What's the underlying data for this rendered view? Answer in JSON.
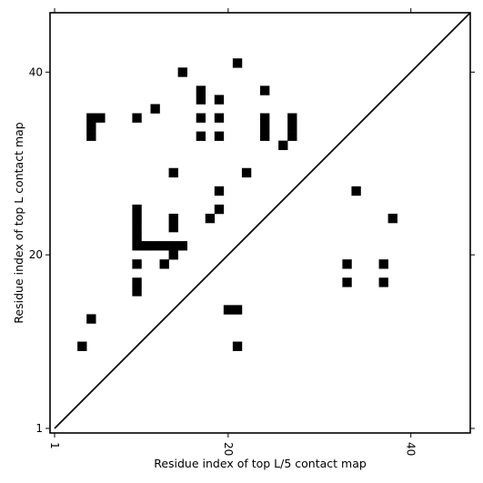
{
  "chart_data": {
    "type": "heatmap",
    "title": "",
    "xlabel": "Residue index of top L/5 contact map",
    "ylabel": "Residue index of top L contact map",
    "xlim": [
      0.5,
      46.5
    ],
    "ylim": [
      0.5,
      46.5
    ],
    "x_ticks": [
      1,
      20,
      40
    ],
    "y_ticks": [
      1,
      20,
      40
    ],
    "x_tick_labels": [
      "1",
      "20",
      "40"
    ],
    "y_tick_labels": [
      "1",
      "20",
      "40"
    ],
    "x_tick_label_rotation": 90,
    "diagonal": {
      "from": [
        1,
        1
      ],
      "to": [
        46.5,
        46.5
      ]
    },
    "cell_color": "#000000",
    "background_color": "#ffffff",
    "contacts": [
      [
        21,
        41
      ],
      [
        15,
        40
      ],
      [
        24,
        38
      ],
      [
        17,
        38
      ],
      [
        17,
        37
      ],
      [
        19,
        37
      ],
      [
        12,
        36
      ],
      [
        5,
        35
      ],
      [
        6,
        35
      ],
      [
        10,
        35
      ],
      [
        17,
        35
      ],
      [
        19,
        35
      ],
      [
        24,
        35
      ],
      [
        27,
        35
      ],
      [
        5,
        34
      ],
      [
        24,
        34
      ],
      [
        27,
        34
      ],
      [
        5,
        33
      ],
      [
        17,
        33
      ],
      [
        19,
        33
      ],
      [
        24,
        33
      ],
      [
        27,
        33
      ],
      [
        26,
        32
      ],
      [
        14,
        29
      ],
      [
        22,
        29
      ],
      [
        19,
        27
      ],
      [
        34,
        27
      ],
      [
        10,
        25
      ],
      [
        19,
        25
      ],
      [
        10,
        24
      ],
      [
        14,
        24
      ],
      [
        18,
        24
      ],
      [
        38,
        24
      ],
      [
        10,
        23
      ],
      [
        14,
        23
      ],
      [
        10,
        22
      ],
      [
        10,
        21
      ],
      [
        14,
        21
      ],
      [
        11,
        21
      ],
      [
        12,
        21
      ],
      [
        13,
        21
      ],
      [
        15,
        21
      ],
      [
        14,
        20
      ],
      [
        10,
        19
      ],
      [
        13,
        19
      ],
      [
        33,
        19
      ],
      [
        37,
        19
      ],
      [
        10,
        17
      ],
      [
        33,
        17
      ],
      [
        37,
        17
      ],
      [
        10,
        16
      ],
      [
        20,
        14
      ],
      [
        21,
        14
      ],
      [
        5,
        13
      ],
      [
        4,
        10
      ],
      [
        21,
        10
      ]
    ]
  }
}
